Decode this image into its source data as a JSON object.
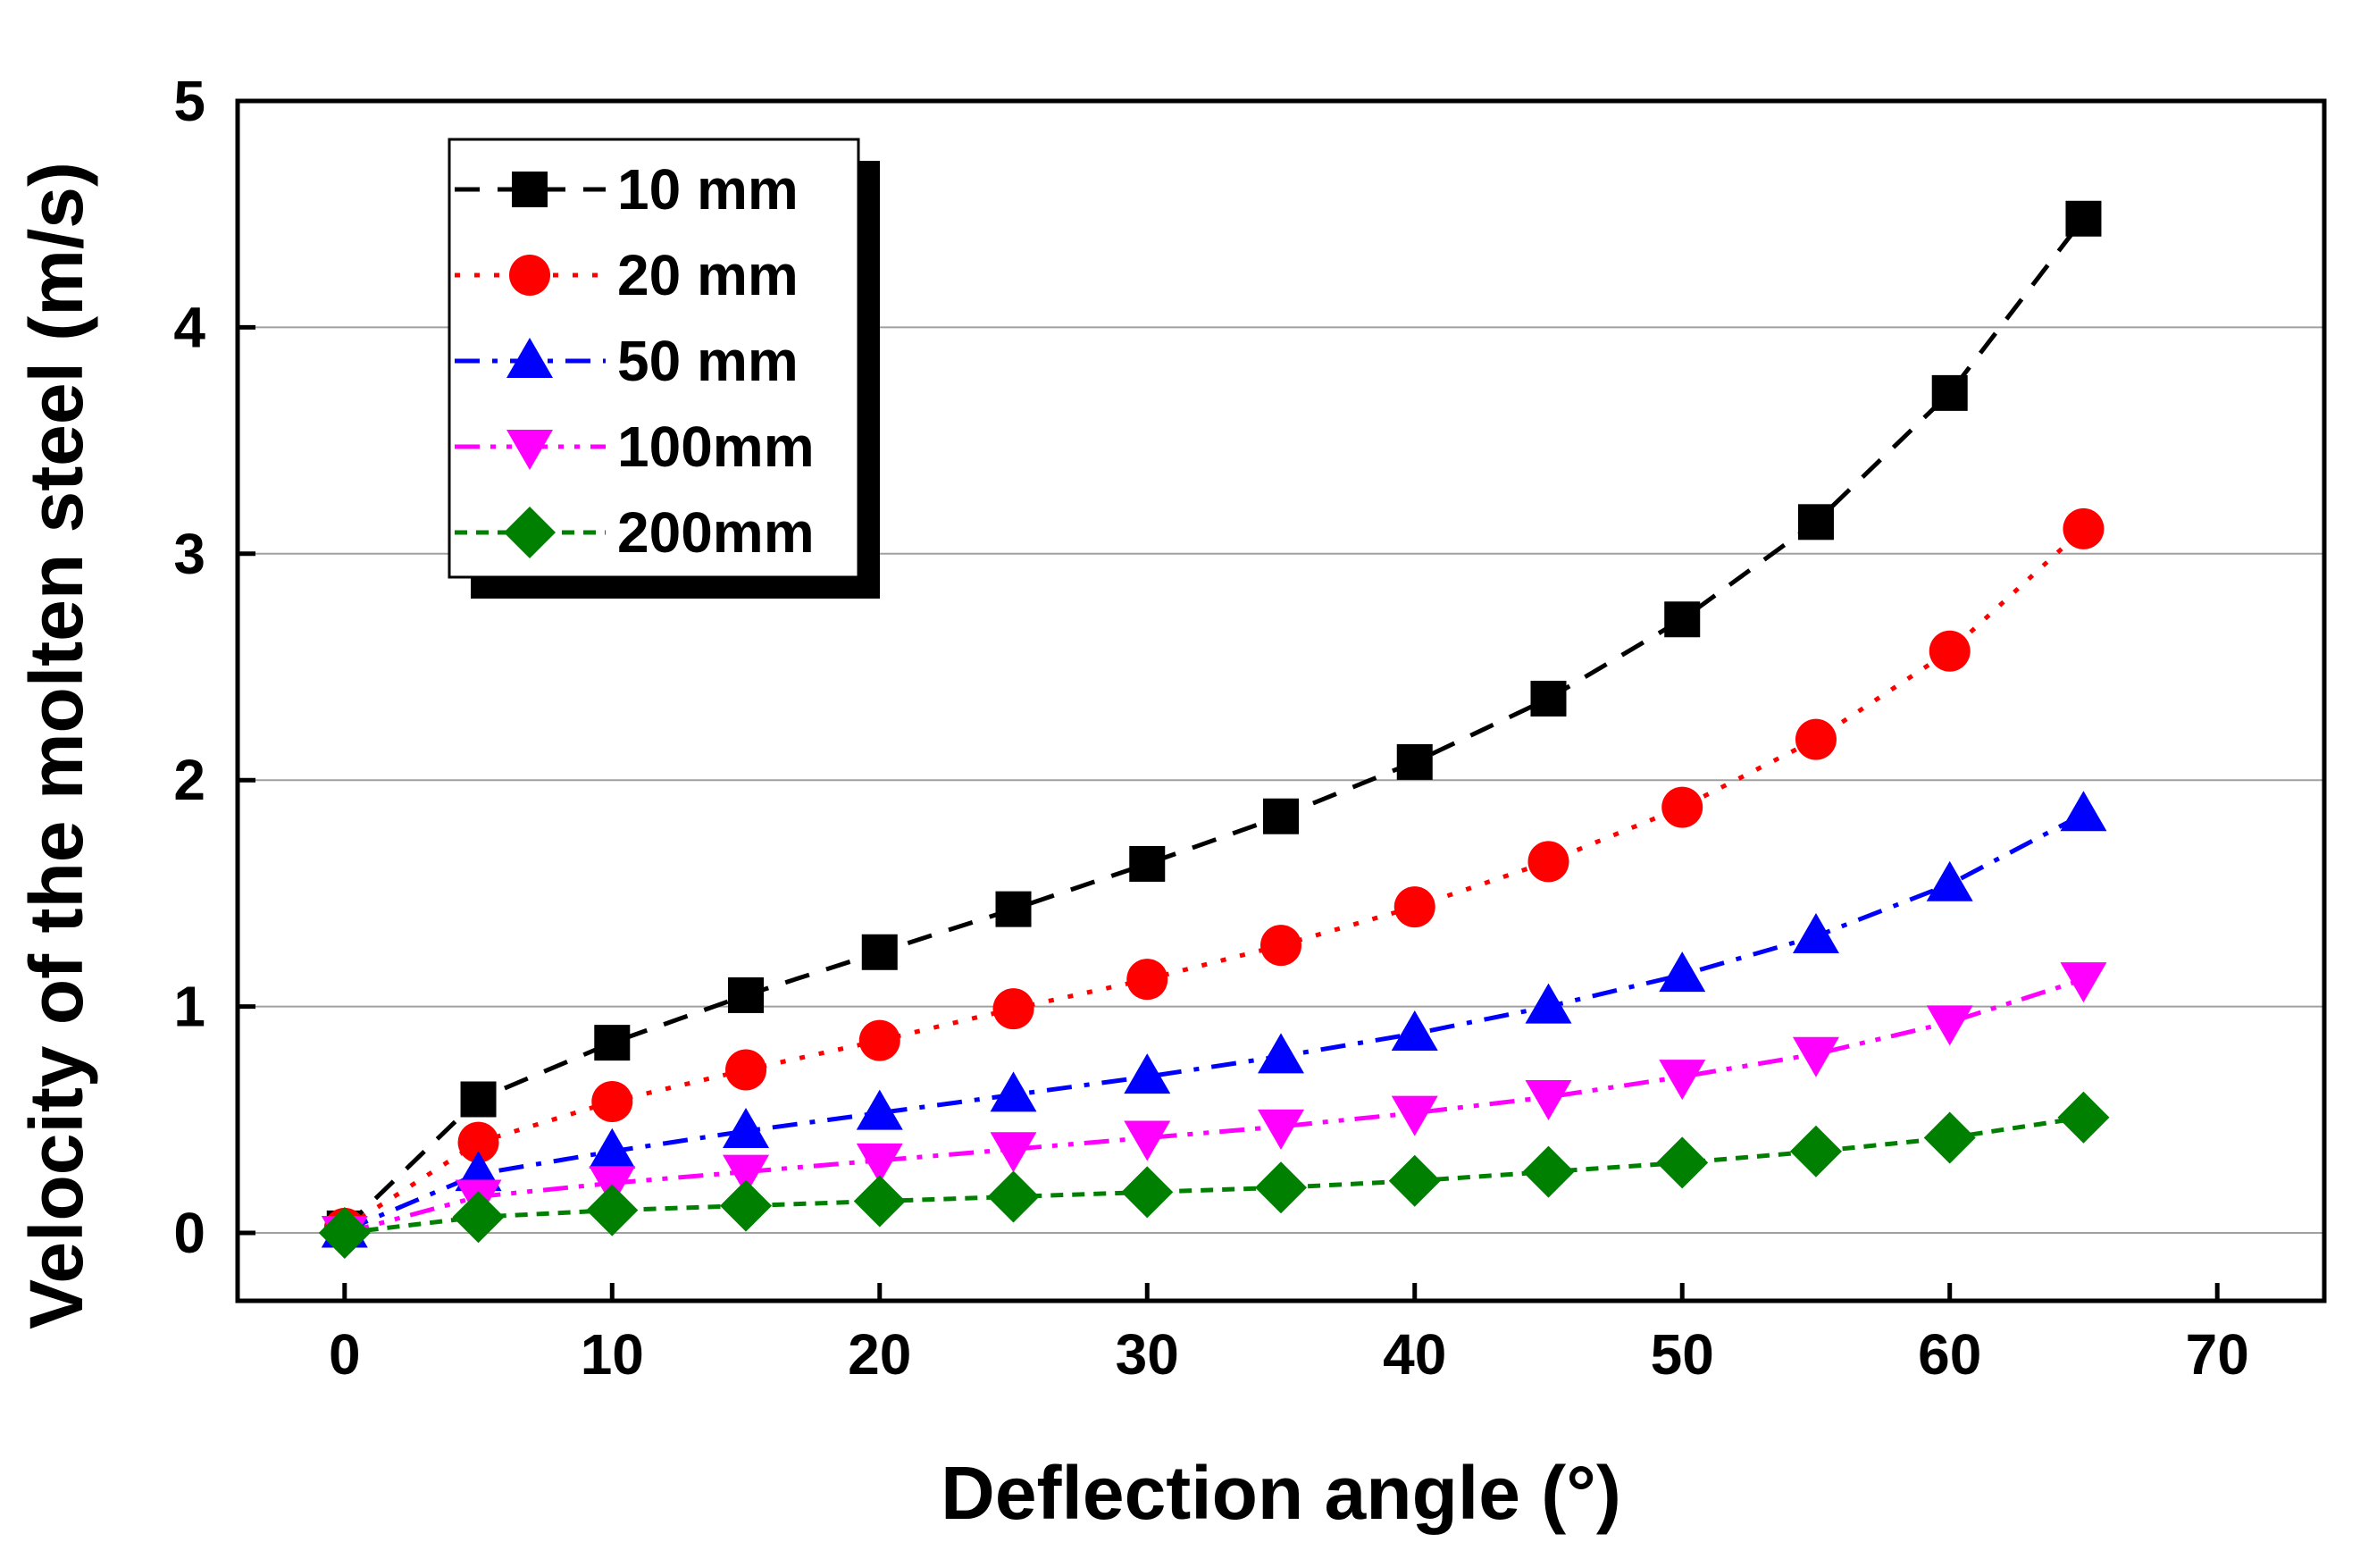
{
  "chart_data": {
    "type": "line",
    "title": "",
    "xlabel": "Deflection angle (°)",
    "ylabel": "Velocity of the molten steel (m/s)",
    "xlim": [
      -4,
      74
    ],
    "ylim": [
      -0.3,
      5
    ],
    "xticks": [
      0,
      10,
      20,
      30,
      40,
      50,
      60,
      70
    ],
    "yticks": [
      0,
      1,
      2,
      3,
      4,
      5
    ],
    "grid": "horizontal",
    "legend_position": "top-left",
    "x": [
      0,
      5,
      10,
      15,
      20,
      25,
      30,
      35,
      40,
      45,
      50,
      55,
      60,
      65
    ],
    "series": [
      {
        "name": "10 mm",
        "marker": "square",
        "color": "#000000",
        "dash": "dash",
        "values": [
          0.02,
          0.59,
          0.84,
          1.05,
          1.24,
          1.43,
          1.63,
          1.84,
          2.08,
          2.36,
          2.71,
          3.14,
          3.71,
          4.48
        ]
      },
      {
        "name": "20 mm",
        "marker": "circle",
        "color": "#ff0000",
        "dash": "dot",
        "values": [
          0.02,
          0.4,
          0.58,
          0.72,
          0.85,
          0.99,
          1.12,
          1.27,
          1.44,
          1.64,
          1.88,
          2.18,
          2.57,
          3.11
        ]
      },
      {
        "name": "50 mm",
        "marker": "triangle-up",
        "color": "#0000ff",
        "dash": "dashdot",
        "values": [
          0.01,
          0.26,
          0.36,
          0.45,
          0.53,
          0.61,
          0.69,
          0.78,
          0.88,
          1.0,
          1.14,
          1.31,
          1.54,
          1.85
        ]
      },
      {
        "name": "100mm",
        "marker": "triangle-down",
        "color": "#ff00ff",
        "dash": "dashdotdot",
        "values": [
          0.0,
          0.16,
          0.22,
          0.27,
          0.32,
          0.37,
          0.42,
          0.47,
          0.53,
          0.6,
          0.69,
          0.79,
          0.93,
          1.12
        ]
      },
      {
        "name": "200mm",
        "marker": "diamond",
        "color": "#008000",
        "dash": "shortdash",
        "values": [
          0.0,
          0.07,
          0.1,
          0.12,
          0.14,
          0.16,
          0.18,
          0.2,
          0.23,
          0.27,
          0.31,
          0.36,
          0.42,
          0.51
        ]
      }
    ]
  }
}
